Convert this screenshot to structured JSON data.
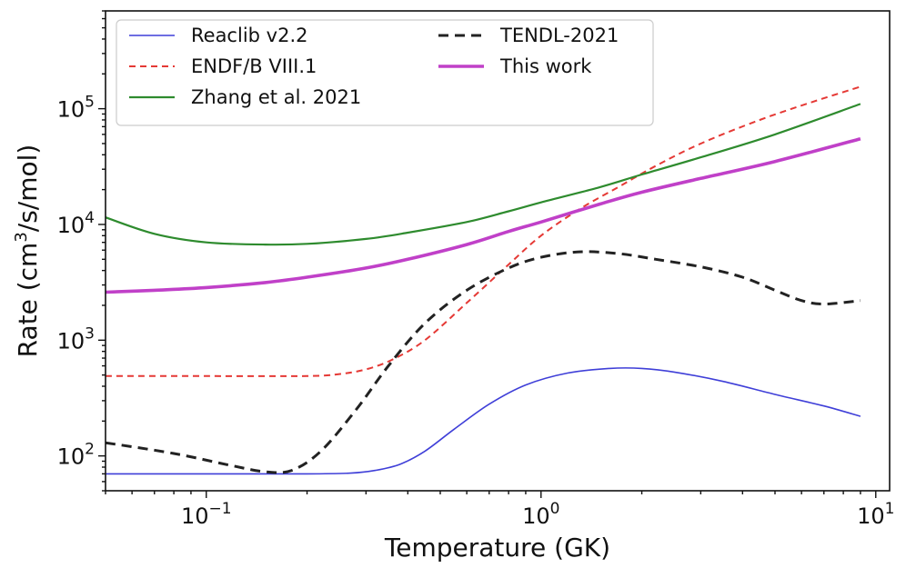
{
  "chart_data": {
    "type": "line",
    "xscale": "log",
    "yscale": "log",
    "xlim": [
      0.05,
      11
    ],
    "ylim": [
      50,
      700000
    ],
    "xlabel": "Temperature (GK)",
    "ylabel_main": "Rate (cm",
    "ylabel_sup": "3",
    "ylabel_tail": "/s/mol)",
    "x_ticks": [
      {
        "value": 0.1,
        "base": "10",
        "exp": "−1"
      },
      {
        "value": 1,
        "base": "10",
        "exp": "0"
      },
      {
        "value": 10,
        "base": "10",
        "exp": "1"
      }
    ],
    "y_ticks": [
      {
        "value": 100,
        "base": "10",
        "exp": "2"
      },
      {
        "value": 1000,
        "base": "10",
        "exp": "3"
      },
      {
        "value": 10000,
        "base": "10",
        "exp": "4"
      },
      {
        "value": 100000,
        "base": "10",
        "exp": "5"
      }
    ],
    "legend_position": "top-left",
    "series": [
      {
        "name": "Reaclib v2.2",
        "color": "#3f3fd8",
        "dash": "",
        "width": 1.6,
        "x": [
          0.05,
          0.1,
          0.2,
          0.27,
          0.32,
          0.38,
          0.45,
          0.55,
          0.7,
          0.9,
          1.2,
          1.6,
          2.0,
          2.5,
          3.5,
          5.0,
          7.0,
          9.0
        ],
        "y": [
          70,
          70,
          70,
          71,
          75,
          85,
          110,
          170,
          280,
          410,
          520,
          570,
          570,
          530,
          440,
          340,
          270,
          220
        ]
      },
      {
        "name": "ENDF/B VIII.1",
        "color": "#e53935",
        "dash": "7,5",
        "width": 2.0,
        "x": [
          0.05,
          0.1,
          0.2,
          0.25,
          0.3,
          0.36,
          0.45,
          0.6,
          0.8,
          1.0,
          1.3,
          1.7,
          2.2,
          3.0,
          4.5,
          6.5,
          9.0
        ],
        "y": [
          490,
          490,
          490,
          510,
          560,
          680,
          1000,
          2100,
          4500,
          8000,
          13500,
          21000,
          32000,
          50000,
          80000,
          115000,
          155000
        ]
      },
      {
        "name": "Zhang et al. 2021",
        "color": "#2e8b2e",
        "dash": "",
        "width": 2.2,
        "x": [
          0.05,
          0.07,
          0.1,
          0.15,
          0.2,
          0.3,
          0.4,
          0.6,
          0.8,
          1.0,
          1.5,
          2.0,
          3.0,
          5.0,
          9.0
        ],
        "y": [
          11500,
          8300,
          7000,
          6700,
          6800,
          7500,
          8500,
          10500,
          13000,
          15500,
          21000,
          27000,
          38000,
          60000,
          110000
        ]
      },
      {
        "name": "TENDL-2021",
        "color": "#222222",
        "dash": "11,7",
        "width": 3.0,
        "x": [
          0.05,
          0.08,
          0.12,
          0.15,
          0.18,
          0.22,
          0.28,
          0.35,
          0.45,
          0.6,
          0.8,
          1.0,
          1.3,
          1.7,
          2.2,
          3.0,
          4.0,
          5.0,
          6.0,
          7.0,
          9.0
        ],
        "y": [
          130,
          105,
          82,
          73,
          75,
          110,
          250,
          600,
          1400,
          2700,
          4200,
          5200,
          5800,
          5600,
          5000,
          4300,
          3500,
          2700,
          2200,
          2050,
          2200
        ]
      },
      {
        "name": "This work",
        "color": "#c040c8",
        "dash": "",
        "width": 3.6,
        "x": [
          0.05,
          0.07,
          0.1,
          0.15,
          0.2,
          0.3,
          0.4,
          0.6,
          0.8,
          1.0,
          1.5,
          2.0,
          3.0,
          5.0,
          9.0
        ],
        "y": [
          2600,
          2700,
          2850,
          3150,
          3500,
          4200,
          5000,
          6700,
          8700,
          10500,
          15000,
          19000,
          25000,
          35000,
          55000
        ]
      }
    ]
  }
}
